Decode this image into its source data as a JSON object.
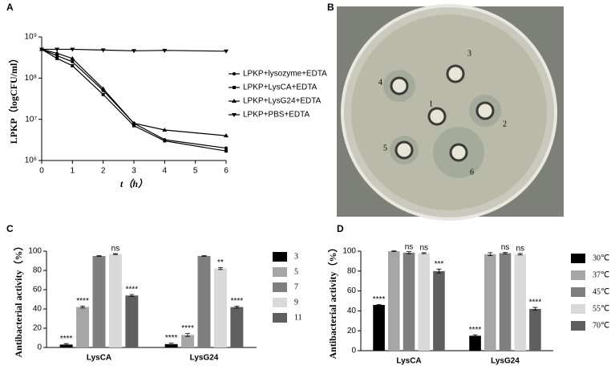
{
  "panel_labels": [
    "A",
    "B",
    "C",
    "D"
  ],
  "photo": {
    "well_labels": [
      "1",
      "2",
      "3",
      "4",
      "5",
      "6"
    ]
  },
  "chart_data": [
    {
      "type": "line",
      "xlabel": "t（h）",
      "ylabel": "LPKP（logCFU/ml）",
      "log_y": true,
      "x": [
        0,
        0.5,
        1,
        2,
        3,
        4,
        6
      ],
      "xlim": [
        0,
        6
      ],
      "xticks": [
        0,
        1,
        2,
        3,
        4,
        5,
        6
      ],
      "ylim": [
        1000000,
        1000000000
      ],
      "yticks": [
        {
          "value": 1000000,
          "label": "10⁶"
        },
        {
          "value": 10000000,
          "label": "10⁷"
        },
        {
          "value": 100000000,
          "label": "10⁸"
        },
        {
          "value": 1000000000,
          "label": "10⁹"
        }
      ],
      "series": [
        {
          "name": "LPKP+lysozyme+EDTA",
          "color": "#000000",
          "marker": "circle",
          "values": [
            500000000,
            350000000,
            250000000,
            50000000,
            8000000,
            3200000,
            2000000
          ]
        },
        {
          "name": "LPKP+LysCA+EDTA",
          "color": "#000000",
          "marker": "square",
          "values": [
            500000000,
            300000000,
            200000000,
            40000000,
            7000000,
            3000000,
            1700000
          ]
        },
        {
          "name": "LPKP+LysG24+EDTA",
          "color": "#000000",
          "marker": "triangle-up",
          "values": [
            500000000,
            400000000,
            300000000,
            55000000,
            8000000,
            5500000,
            4000000
          ]
        },
        {
          "name": "LPKP+PBS+EDTA",
          "color": "#000000",
          "marker": "triangle-down",
          "values": [
            500000000,
            500000000,
            500000000,
            480000000,
            460000000,
            470000000,
            450000000
          ]
        }
      ]
    },
    {
      "type": "bar",
      "ylabel": "Antibacterial activity（%）",
      "categories": [
        "LysCA",
        "LysG24"
      ],
      "ylim": [
        0,
        100
      ],
      "yticks": [
        0,
        20,
        40,
        60,
        80,
        100
      ],
      "series": [
        {
          "name": "3",
          "color": "#000000",
          "values": [
            3,
            3.5
          ],
          "errors": [
            1,
            1
          ],
          "annotations": [
            "****",
            "****"
          ]
        },
        {
          "name": "5",
          "color": "#a6a6a6",
          "values": [
            42,
            13
          ],
          "errors": [
            1,
            1.5
          ],
          "annotations": [
            "****",
            "****"
          ]
        },
        {
          "name": "7",
          "color": "#7f7f7f",
          "values": [
            95,
            95
          ],
          "errors": [
            0.3,
            0.3
          ],
          "annotations": [
            null,
            null
          ]
        },
        {
          "name": "9",
          "color": "#d9d9d9",
          "values": [
            97,
            82
          ],
          "errors": [
            0.5,
            1
          ],
          "annotations": [
            "ns",
            "**"
          ]
        },
        {
          "name": "11",
          "color": "#5f5f5f",
          "values": [
            54,
            42
          ],
          "errors": [
            1,
            1
          ],
          "annotations": [
            "****",
            "****"
          ]
        }
      ]
    },
    {
      "type": "bar",
      "ylabel": "Antibacterial activity（%）",
      "categories": [
        "LysCA",
        "LysG24"
      ],
      "ylim": [
        0,
        100
      ],
      "yticks": [
        0,
        20,
        40,
        60,
        80,
        100
      ],
      "series": [
        {
          "name": "30℃",
          "color": "#000000",
          "values": [
            46,
            15
          ],
          "errors": [
            0.5,
            1
          ],
          "annotations": [
            "****",
            "****"
          ]
        },
        {
          "name": "37℃",
          "color": "#a6a6a6",
          "values": [
            100,
            97
          ],
          "errors": [
            0.3,
            1.5
          ],
          "annotations": [
            null,
            null
          ]
        },
        {
          "name": "45℃",
          "color": "#7f7f7f",
          "values": [
            98.5,
            98
          ],
          "errors": [
            1,
            0.8
          ],
          "annotations": [
            "ns",
            "ns"
          ]
        },
        {
          "name": "55℃",
          "color": "#d9d9d9",
          "values": [
            98,
            97
          ],
          "errors": [
            0.5,
            0.8
          ],
          "annotations": [
            "ns",
            "ns"
          ]
        },
        {
          "name": "70℃",
          "color": "#5f5f5f",
          "values": [
            80,
            42
          ],
          "errors": [
            2,
            1.5
          ],
          "annotations": [
            "***",
            "****"
          ]
        }
      ]
    }
  ]
}
